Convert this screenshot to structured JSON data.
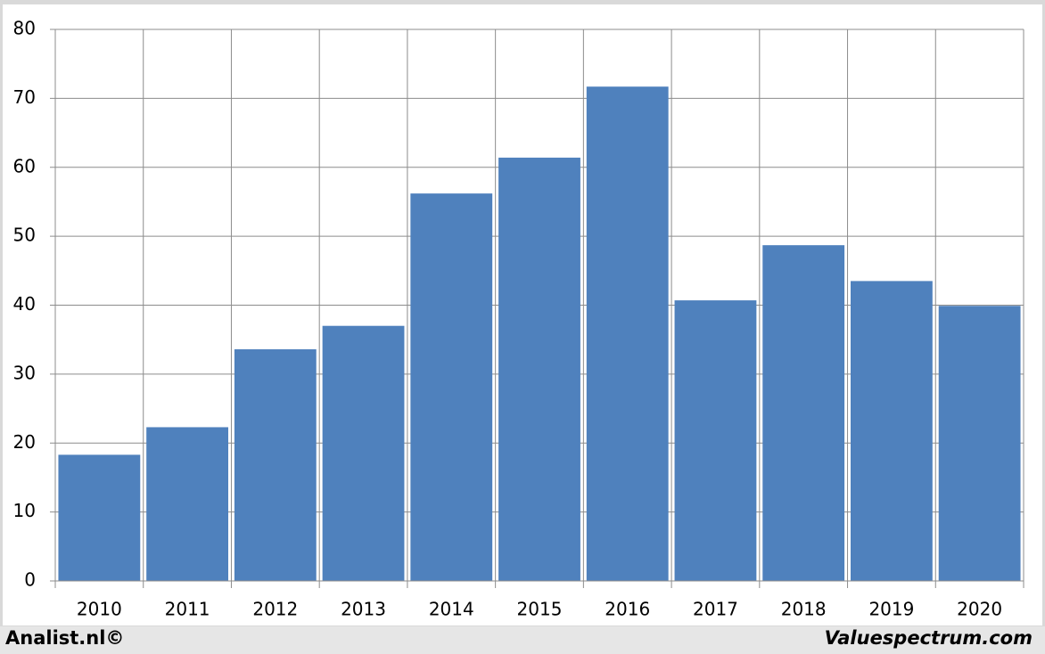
{
  "chart_data": {
    "type": "bar",
    "categories": [
      "2010",
      "2011",
      "2012",
      "2013",
      "2014",
      "2015",
      "2016",
      "2017",
      "2018",
      "2019",
      "2020"
    ],
    "values": [
      18.3,
      22.3,
      33.6,
      37.0,
      56.2,
      61.4,
      71.7,
      40.7,
      48.7,
      43.5,
      39.9
    ],
    "color": "#4f81bd",
    "ylim": [
      0,
      80
    ],
    "yticks": [
      0,
      10,
      20,
      30,
      40,
      50,
      60,
      70,
      80
    ],
    "grid": true,
    "footer_left": "Analist.nl©",
    "footer_right": "Valuespectrum.com"
  }
}
